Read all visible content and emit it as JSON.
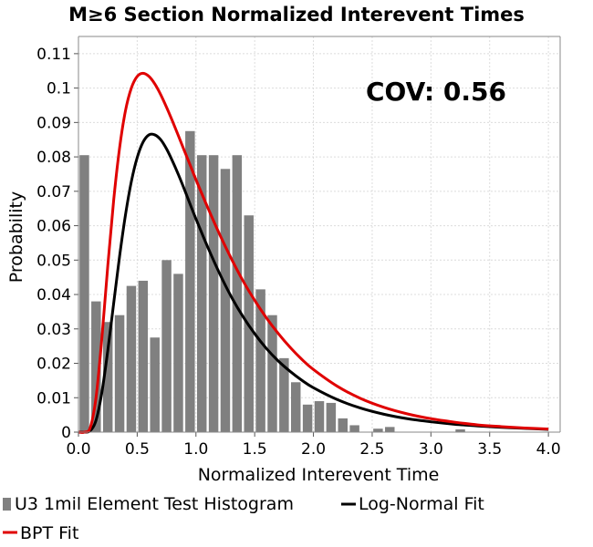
{
  "chart_data": {
    "type": "bar",
    "title": "M≥6 Section Normalized Interevent Times",
    "xlabel": "Normalized Interevent Time",
    "ylabel": "Probability",
    "xlim": [
      0,
      4.1
    ],
    "ylim": [
      0,
      0.115
    ],
    "xticks": [
      "0.0",
      "0.5",
      "1.0",
      "1.5",
      "2.0",
      "2.5",
      "3.0",
      "3.5",
      "4.0"
    ],
    "yticks": [
      "0",
      "0.01",
      "0.02",
      "0.03",
      "0.04",
      "0.05",
      "0.06",
      "0.07",
      "0.08",
      "0.09",
      "0.1",
      "0.11"
    ],
    "grid": true,
    "annotation": "COV: 0.56",
    "bin_width": 0.1,
    "histogram": {
      "name": "U3 1mil Element Test Histogram",
      "color": "#808080",
      "x": [
        0.0,
        0.1,
        0.2,
        0.3,
        0.4,
        0.5,
        0.6,
        0.7,
        0.8,
        0.9,
        1.0,
        1.1,
        1.2,
        1.3,
        1.4,
        1.5,
        1.6,
        1.7,
        1.8,
        1.9,
        2.0,
        2.1,
        2.2,
        2.3,
        2.4,
        2.5,
        2.6,
        2.7,
        2.8,
        2.9,
        3.0,
        3.1,
        3.2
      ],
      "values": [
        0.0805,
        0.038,
        0.032,
        0.034,
        0.0425,
        0.044,
        0.0275,
        0.05,
        0.046,
        0.0875,
        0.0805,
        0.0805,
        0.0765,
        0.0805,
        0.063,
        0.0415,
        0.034,
        0.0215,
        0.0145,
        0.008,
        0.009,
        0.0085,
        0.004,
        0.002,
        0.0,
        0.001,
        0.0015,
        0.0,
        0.0,
        0.0,
        0.0,
        0.0,
        0.0008
      ]
    },
    "series": [
      {
        "name": "Log-Normal Fit",
        "color": "#000000",
        "type": "line",
        "x": [
          0.0,
          0.05,
          0.1,
          0.15,
          0.2,
          0.25,
          0.3,
          0.35,
          0.4,
          0.45,
          0.5,
          0.55,
          0.6,
          0.65,
          0.7,
          0.75,
          0.8,
          0.85,
          0.9,
          0.95,
          1.0,
          1.1,
          1.2,
          1.3,
          1.4,
          1.5,
          1.6,
          1.7,
          1.8,
          1.9,
          2.0,
          2.2,
          2.4,
          2.6,
          2.8,
          3.0,
          3.2,
          3.4,
          3.6,
          3.8,
          4.0
        ],
        "values": [
          0.0,
          0.0,
          0.0004,
          0.0035,
          0.0117,
          0.0238,
          0.0375,
          0.0511,
          0.0631,
          0.0728,
          0.0798,
          0.0843,
          0.0864,
          0.0864,
          0.085,
          0.0823,
          0.0788,
          0.0749,
          0.0707,
          0.0663,
          0.062,
          0.0538,
          0.0462,
          0.0394,
          0.0336,
          0.0286,
          0.0243,
          0.0207,
          0.0177,
          0.0151,
          0.0129,
          0.0095,
          0.007,
          0.0052,
          0.0039,
          0.003,
          0.0023,
          0.0018,
          0.0014,
          0.0011,
          0.0008
        ]
      },
      {
        "name": "BPT Fit",
        "color": "#e00000",
        "type": "line",
        "x": [
          0.0,
          0.05,
          0.1,
          0.15,
          0.2,
          0.25,
          0.3,
          0.35,
          0.4,
          0.45,
          0.5,
          0.55,
          0.6,
          0.65,
          0.7,
          0.75,
          0.8,
          0.85,
          0.9,
          0.95,
          1.0,
          1.1,
          1.2,
          1.3,
          1.4,
          1.5,
          1.6,
          1.7,
          1.8,
          1.9,
          2.0,
          2.2,
          2.4,
          2.6,
          2.8,
          3.0,
          3.2,
          3.4,
          3.6,
          3.8,
          4.0
        ],
        "values": [
          0.0,
          0.0,
          0.0013,
          0.0102,
          0.0276,
          0.0485,
          0.0675,
          0.0826,
          0.0934,
          0.1,
          0.1034,
          0.1043,
          0.1034,
          0.1012,
          0.0981,
          0.0944,
          0.0904,
          0.0862,
          0.0819,
          0.0777,
          0.0734,
          0.0653,
          0.0576,
          0.0505,
          0.044,
          0.0383,
          0.0332,
          0.0287,
          0.0247,
          0.0212,
          0.0182,
          0.0134,
          0.0098,
          0.0072,
          0.0053,
          0.0039,
          0.0029,
          0.0021,
          0.0016,
          0.0012,
          0.0009
        ]
      }
    ],
    "legend": {
      "position": "bottom",
      "items": [
        "U3 1mil Element Test Histogram",
        "Log-Normal Fit",
        "BPT Fit"
      ]
    }
  }
}
